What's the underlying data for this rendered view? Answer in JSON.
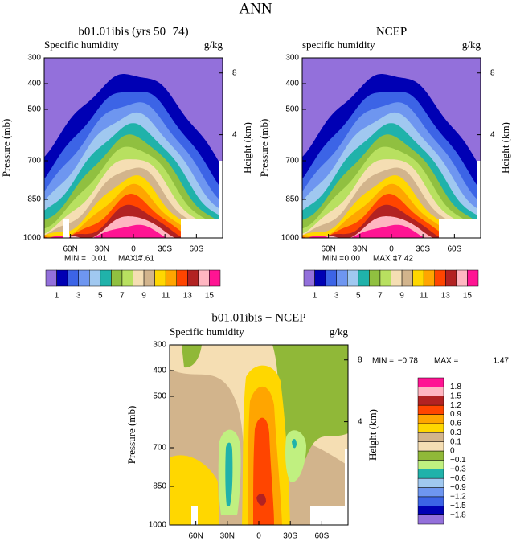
{
  "title": "ANN",
  "chart_data": [
    {
      "type": "contour",
      "title": "b01.01ibis (yrs 50−74)",
      "subtitle": "Specific humidity",
      "units": "g/kg",
      "ylabel": "Pressure (mb)",
      "y2label": "Height (km)",
      "xlim": [
        85,
        -85
      ],
      "xticks": [
        {
          "value": 60,
          "label": "60N"
        },
        {
          "value": 30,
          "label": "30N"
        },
        0,
        {
          "value": -30,
          "label": "30S"
        },
        {
          "value": -60,
          "label": "60S"
        }
      ],
      "ylim": [
        1000,
        300
      ],
      "yticks": [
        300,
        400,
        500,
        700,
        850,
        1000
      ],
      "y2ticks": [
        4,
        8
      ],
      "stats": {
        "min_label": "MIN =",
        "min": {
          "value": 0.01,
          "label": "0.01"
        },
        "max_label": "MAX =",
        "max": {
          "value": 17.61,
          "label": "17.61"
        }
      },
      "colorbar": {
        "orientation": "horizontal",
        "levels": [
          1,
          3,
          5,
          7,
          9,
          11,
          13,
          15
        ],
        "colors": [
          "#9370db",
          "#0000b4",
          "#3c64e6",
          "#6e96f0",
          "#a0c8f0",
          "#20b2aa",
          "#90c040",
          "#b8e060",
          "#f5deb3",
          "#d2b48c",
          "#ffd700",
          "#ffa500",
          "#ff4500",
          "#b22222",
          "#ffb6c1",
          "#ff1493"
        ]
      }
    },
    {
      "type": "contour",
      "title": "NCEP",
      "subtitle": "specific humidity",
      "units": "g/kg",
      "ylabel": "Pressure (mb)",
      "y2label": "Height (km)",
      "xlim": [
        85,
        -85
      ],
      "xticks": [
        {
          "value": 60,
          "label": "60N"
        },
        {
          "value": 30,
          "label": "30N"
        },
        0,
        {
          "value": -30,
          "label": "30S"
        },
        {
          "value": -60,
          "label": "60S"
        }
      ],
      "ylim": [
        1000,
        300
      ],
      "yticks": [
        300,
        400,
        500,
        700,
        850,
        1000
      ],
      "y2ticks": [
        4,
        8
      ],
      "stats": {
        "min_label": "MIN =",
        "min": {
          "value": 0,
          "label": "0.00"
        },
        "max_label": "MAX =",
        "max": {
          "value": 17.42,
          "label": "17.42"
        }
      },
      "colorbar": {
        "orientation": "horizontal",
        "levels": [
          1,
          3,
          5,
          7,
          9,
          11,
          13,
          15
        ],
        "colors": [
          "#9370db",
          "#0000b4",
          "#3c64e6",
          "#6e96f0",
          "#a0c8f0",
          "#20b2aa",
          "#90c040",
          "#b8e060",
          "#f5deb3",
          "#d2b48c",
          "#ffd700",
          "#ffa500",
          "#ff4500",
          "#b22222",
          "#ffb6c1",
          "#ff1493"
        ]
      }
    },
    {
      "type": "contour-difference",
      "title": "b01.01ibis − NCEP",
      "subtitle": "Specific humidity",
      "units": "g/kg",
      "ylabel": "Pressure (mb)",
      "y2label": "Height (km)",
      "xlim": [
        85,
        -85
      ],
      "xticks": [
        {
          "value": 60,
          "label": "60N"
        },
        {
          "value": 30,
          "label": "30N"
        },
        0,
        {
          "value": -30,
          "label": "30S"
        },
        {
          "value": -60,
          "label": "60S"
        }
      ],
      "ylim": [
        1000,
        300
      ],
      "yticks": [
        300,
        400,
        500,
        700,
        850,
        1000
      ],
      "y2ticks": [
        4,
        8
      ],
      "stats": {
        "min_label": "MIN =",
        "min": {
          "value": -0.78,
          "label": "−0.78"
        },
        "max_label": "MAX =",
        "max": {
          "value": 1.47,
          "label": "1.47"
        }
      },
      "colorbar": {
        "orientation": "vertical",
        "levels": [
          {
            "value": -1.8,
            "label": "−1.8"
          },
          {
            "value": -1.5,
            "label": "−1.5"
          },
          {
            "value": -1.2,
            "label": "−1.2"
          },
          {
            "value": -0.9,
            "label": "−0.9"
          },
          {
            "value": -0.6,
            "label": "−0.6"
          },
          {
            "value": -0.3,
            "label": "−0.3"
          },
          {
            "value": -0.1,
            "label": "−0.1"
          },
          0,
          0.1,
          0.3,
          0.6,
          0.9,
          1.2,
          1.5,
          1.8
        ],
        "colors": [
          "#9370db",
          "#0000b4",
          "#3c64e6",
          "#6e96f0",
          "#a0c8f0",
          "#20b2aa",
          "#c0f080",
          "#90b838",
          "#f5deb3",
          "#d2b48c",
          "#ffd700",
          "#ffa500",
          "#ff4500",
          "#b22222",
          "#ffb6c1",
          "#ff1493"
        ]
      }
    }
  ]
}
